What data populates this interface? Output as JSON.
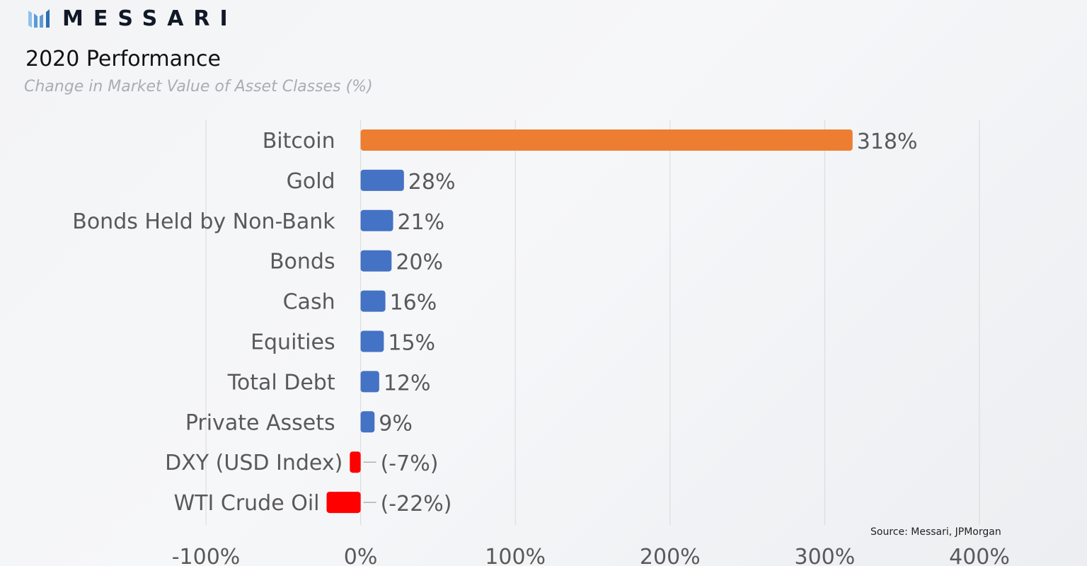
{
  "brand": {
    "name": "MESSARI",
    "logo_icon": "messari-m-icon",
    "logo_color": "#5b9bd5"
  },
  "header": {
    "title": "2020 Performance",
    "subtitle": "Change in Market Value of  Asset Classes (%)"
  },
  "source": "Source: Messari, JPMorgan",
  "colors": {
    "highlight": "#ed7d31",
    "positive": "#4472c4",
    "negative": "#ff0000",
    "grid": "#d9d9d9",
    "label": "#595959"
  },
  "chart_data": {
    "type": "bar",
    "orientation": "horizontal",
    "title": "2020 Performance",
    "subtitle": "Change in Market Value of  Asset Classes (%)",
    "categories": [
      "Bitcoin",
      "Gold",
      "Bonds Held by Non-Bank",
      "Bonds",
      "Cash",
      "Equities",
      "Total Debt",
      "Private Assets",
      "DXY (USD Index)",
      "WTI Crude Oil"
    ],
    "values": [
      318,
      28,
      21,
      20,
      16,
      15,
      12,
      9,
      -7,
      -22
    ],
    "data_labels": [
      "318%",
      "28%",
      "21%",
      "20%",
      "16%",
      "15%",
      "12%",
      "9%",
      "(-7%)",
      "(-22%)"
    ],
    "bar_colors": [
      "#ed7d31",
      "#4472c4",
      "#4472c4",
      "#4472c4",
      "#4472c4",
      "#4472c4",
      "#4472c4",
      "#4472c4",
      "#ff0000",
      "#ff0000"
    ],
    "xlim": [
      -100,
      400
    ],
    "x_ticks": [
      -100,
      0,
      100,
      200,
      300,
      400
    ],
    "x_tick_labels": [
      "-100%",
      "0%",
      "100%",
      "200%",
      "300%",
      "400%"
    ],
    "grid": "vertical",
    "legend": "none"
  }
}
